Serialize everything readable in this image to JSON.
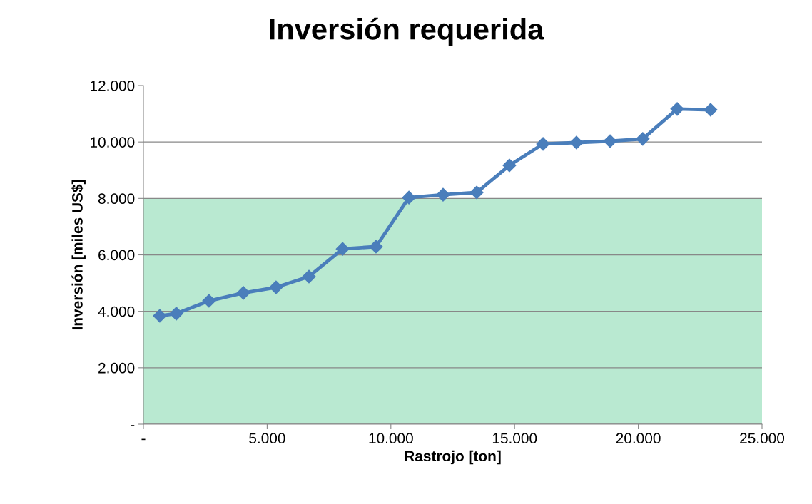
{
  "chart_data": {
    "type": "line",
    "title": "Inversión requerida",
    "xlabel": "Rastrojo [ton]",
    "ylabel": "Inversión [miles US$]",
    "x": [
      660,
      1330,
      2650,
      4040,
      5360,
      6690,
      8050,
      9400,
      10730,
      12110,
      13470,
      14790,
      16150,
      17500,
      18860,
      20180,
      21570,
      22920
    ],
    "series": [
      {
        "color": "#4a7ebb",
        "values": [
          3840,
          3920,
          4370,
          4650,
          4850,
          5230,
          6210,
          6290,
          8030,
          8130,
          8210,
          9170,
          9930,
          9980,
          10030,
          10110,
          11170,
          11140
        ]
      }
    ],
    "xlim": [
      0,
      25000
    ],
    "xticks": [
      {
        "value": 0,
        "label": "-"
      },
      {
        "value": 5000,
        "label": "5.000"
      },
      {
        "value": 10000,
        "label": "10.000"
      },
      {
        "value": 15000,
        "label": "15.000"
      },
      {
        "value": 20000,
        "label": "20.000"
      },
      {
        "value": 25000,
        "label": "25.000"
      }
    ],
    "ylim": [
      0,
      12000
    ],
    "yticks": [
      {
        "value": 0,
        "label": "-"
      },
      {
        "value": 2000,
        "label": "2.000"
      },
      {
        "value": 4000,
        "label": "4.000"
      },
      {
        "value": 6000,
        "label": "6.000"
      },
      {
        "value": 8000,
        "label": "8.000"
      },
      {
        "value": 10000,
        "label": "10.000"
      },
      {
        "value": 12000,
        "label": "12.000"
      }
    ],
    "bands": [
      {
        "axis": "y",
        "from": 0,
        "to": 8000,
        "color": "#b9e9d1"
      }
    ],
    "grid": "y",
    "marker": "diamond",
    "line_style": "solid"
  }
}
